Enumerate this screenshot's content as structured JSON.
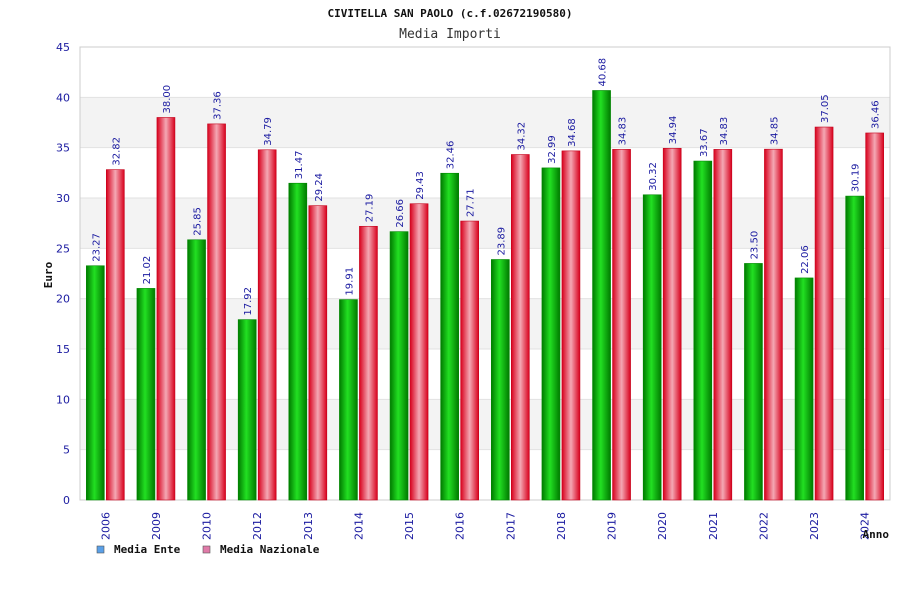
{
  "chart_data": {
    "type": "bar",
    "title": "CIVITELLA SAN PAOLO (c.f.02672190580)",
    "subtitle": "Media Importi",
    "xlabel": "Anno",
    "ylabel": "Euro",
    "ylim": [
      0,
      45
    ],
    "yticks": [
      "0",
      "5",
      "10",
      "15",
      "20",
      "25",
      "30",
      "35",
      "40",
      "45"
    ],
    "grid": true,
    "legend_position": "bottom-left",
    "categories": [
      "2006",
      "2009",
      "2010",
      "2012",
      "2013",
      "2014",
      "2015",
      "2016",
      "2017",
      "2018",
      "2019",
      "2020",
      "2021",
      "2022",
      "2023",
      "2024"
    ],
    "series": [
      {
        "name": "Media Ente",
        "color": "#00b400",
        "legend_color": "#5aa0e8",
        "values": [
          23.27,
          21.02,
          25.85,
          17.92,
          31.47,
          19.91,
          26.66,
          32.46,
          23.89,
          32.99,
          40.68,
          30.32,
          33.67,
          23.5,
          22.06,
          30.19
        ],
        "labels": [
          "23.27",
          "21.02",
          "25.85",
          "17.92",
          "31.47",
          "19.91",
          "26.66",
          "32.46",
          "23.89",
          "32.99",
          "40.68",
          "30.32",
          "33.67",
          "23.50",
          "22.06",
          "30.19"
        ]
      },
      {
        "name": "Media Nazionale",
        "color": "#e8102a",
        "legend_color": "#e07aa8",
        "values": [
          32.82,
          38.0,
          37.36,
          34.79,
          29.24,
          27.19,
          29.43,
          27.71,
          34.32,
          34.68,
          34.83,
          34.94,
          34.83,
          34.85,
          37.05,
          36.46
        ],
        "labels": [
          "32.82",
          "38.00",
          "37.36",
          "34.79",
          "29.24",
          "27.19",
          "29.43",
          "27.71",
          "34.32",
          "34.68",
          "34.83",
          "34.94",
          "34.83",
          "34.85",
          "37.05",
          "36.46"
        ]
      }
    ]
  }
}
